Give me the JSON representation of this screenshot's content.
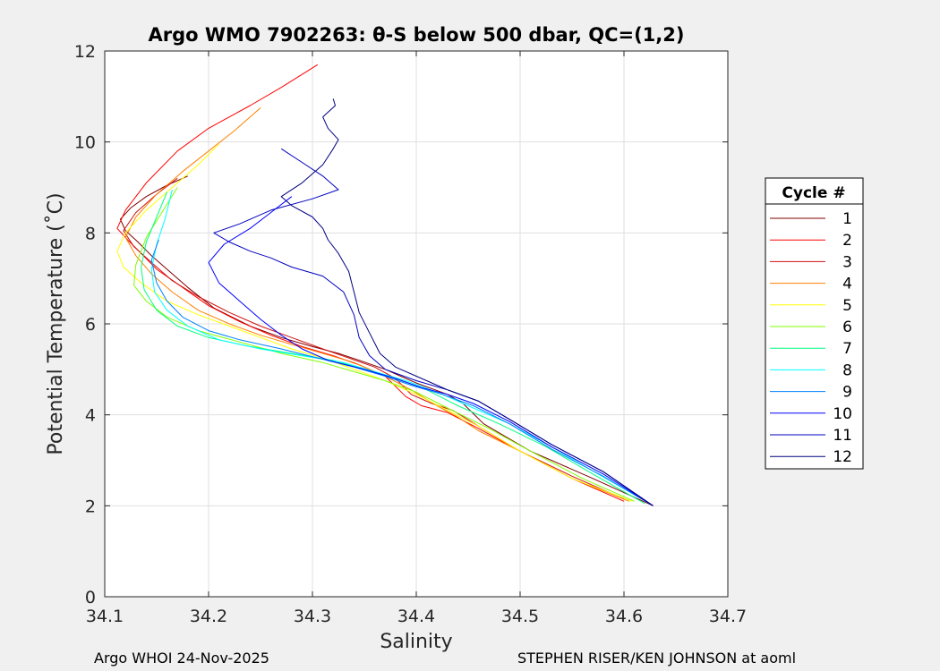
{
  "chart_data": {
    "type": "line",
    "title": "Argo WMO 7902263: θ-S below 500 dbar,  QC=(1,2)",
    "xlabel": "Salinity",
    "ylabel": "Potential Temperature (˚C)",
    "xlim": [
      34.1,
      34.7
    ],
    "ylim": [
      0,
      12
    ],
    "xticks": [
      34.1,
      34.2,
      34.3,
      34.4,
      34.5,
      34.6,
      34.7
    ],
    "xtick_labels": [
      "34.1",
      "34.2",
      "34.3",
      "34.4",
      "34.5",
      "34.6",
      "34.7"
    ],
    "yticks": [
      0,
      2,
      4,
      6,
      8,
      10,
      12
    ],
    "ytick_labels": [
      "0",
      "2",
      "4",
      "6",
      "8",
      "10",
      "12"
    ],
    "grid": true,
    "legend_title": "Cycle #",
    "legend_position": "right",
    "series": [
      {
        "name": "1",
        "color": "#800000",
        "x": [
          34.628,
          34.57,
          34.51,
          34.465,
          34.445,
          34.43,
          34.4,
          34.385,
          34.37,
          34.345,
          34.325,
          34.3,
          34.27,
          34.24,
          34.205,
          34.18,
          34.16,
          34.145,
          34.132,
          34.12,
          34.115,
          34.125,
          34.14,
          34.16,
          34.18
        ],
        "y": [
          2.0,
          2.6,
          3.2,
          3.8,
          4.25,
          4.45,
          4.7,
          4.85,
          5.0,
          5.2,
          5.35,
          5.5,
          5.7,
          5.95,
          6.35,
          6.8,
          7.2,
          7.5,
          7.8,
          8.05,
          8.3,
          8.55,
          8.8,
          9.05,
          9.25
        ]
      },
      {
        "name": "2",
        "color": "#ff0000",
        "x": [
          34.6,
          34.55,
          34.5,
          34.46,
          34.43,
          34.405,
          34.39,
          34.37,
          34.345,
          34.32,
          34.29,
          34.26,
          34.23,
          34.2,
          34.175,
          34.15,
          34.135,
          34.122,
          34.112,
          34.12,
          34.14,
          34.17,
          34.2,
          34.24,
          34.27,
          34.305
        ],
        "y": [
          2.1,
          2.6,
          3.2,
          3.7,
          4.05,
          4.2,
          4.4,
          4.85,
          5.1,
          5.3,
          5.5,
          5.75,
          6.05,
          6.4,
          6.8,
          7.2,
          7.55,
          7.85,
          8.1,
          8.5,
          9.1,
          9.8,
          10.3,
          10.8,
          11.2,
          11.7
        ]
      },
      {
        "name": "3",
        "color": "#d01010",
        "x": [
          34.6,
          34.55,
          34.5,
          34.46,
          34.435,
          34.415,
          34.395,
          34.38,
          34.36,
          34.335,
          34.31,
          34.28,
          34.25,
          34.22,
          34.19,
          34.165,
          34.145,
          34.128,
          34.118,
          34.13,
          34.15,
          34.17
        ],
        "y": [
          2.15,
          2.65,
          3.2,
          3.75,
          4.1,
          4.25,
          4.45,
          4.8,
          5.05,
          5.25,
          5.45,
          5.7,
          5.95,
          6.25,
          6.6,
          6.95,
          7.35,
          7.7,
          8.05,
          8.45,
          8.85,
          9.2
        ]
      },
      {
        "name": "4",
        "color": "#ff8000",
        "x": [
          34.605,
          34.55,
          34.5,
          34.46,
          34.44,
          34.42,
          34.395,
          34.37,
          34.34,
          34.31,
          34.28,
          34.25,
          34.22,
          34.19,
          34.165,
          34.145,
          34.13,
          34.12,
          34.13,
          34.15,
          34.175,
          34.2,
          34.225,
          34.25
        ],
        "y": [
          2.1,
          2.6,
          3.2,
          3.65,
          3.95,
          4.2,
          4.55,
          4.85,
          5.15,
          5.35,
          5.55,
          5.75,
          6.0,
          6.3,
          6.7,
          7.1,
          7.5,
          7.9,
          8.35,
          8.85,
          9.35,
          9.8,
          10.25,
          10.75
        ]
      },
      {
        "name": "5",
        "color": "#ffff00",
        "x": [
          34.608,
          34.55,
          34.5,
          34.46,
          34.43,
          34.4,
          34.37,
          34.34,
          34.31,
          34.28,
          34.25,
          34.22,
          34.19,
          34.16,
          34.135,
          34.118,
          34.112,
          34.12,
          34.14,
          34.165,
          34.19,
          34.21
        ],
        "y": [
          2.1,
          2.6,
          3.2,
          3.75,
          4.1,
          4.45,
          4.75,
          5.0,
          5.25,
          5.45,
          5.7,
          5.95,
          6.2,
          6.5,
          6.9,
          7.25,
          7.6,
          8.0,
          8.5,
          9.0,
          9.5,
          9.95
        ]
      },
      {
        "name": "6",
        "color": "#80ff00",
        "x": [
          34.61,
          34.56,
          34.51,
          34.47,
          34.43,
          34.4,
          34.37,
          34.34,
          34.31,
          34.27,
          34.23,
          34.19,
          34.16,
          34.14,
          34.128,
          34.13,
          34.14,
          34.155,
          34.17
        ],
        "y": [
          2.1,
          2.6,
          3.2,
          3.7,
          4.15,
          4.5,
          4.75,
          4.95,
          5.15,
          5.35,
          5.6,
          5.85,
          6.15,
          6.5,
          6.85,
          7.3,
          7.9,
          8.45,
          9.0
        ]
      },
      {
        "name": "7",
        "color": "#00ff80",
        "x": [
          34.62,
          34.57,
          34.525,
          34.48,
          34.44,
          34.41,
          34.38,
          34.35,
          34.32,
          34.28,
          34.24,
          34.2,
          34.17,
          34.15,
          34.138,
          34.135,
          34.14,
          34.15,
          34.16
        ],
        "y": [
          2.05,
          2.7,
          3.3,
          3.8,
          4.2,
          4.55,
          4.8,
          5.0,
          5.2,
          5.35,
          5.5,
          5.7,
          5.95,
          6.3,
          6.75,
          7.25,
          7.8,
          8.35,
          8.9
        ]
      },
      {
        "name": "8",
        "color": "#00ffff",
        "x": [
          34.625,
          34.575,
          34.53,
          34.49,
          34.45,
          34.42,
          34.39,
          34.36,
          34.33,
          34.29,
          34.25,
          34.21,
          34.18,
          34.16,
          34.148,
          34.145,
          34.15,
          34.158,
          34.165
        ],
        "y": [
          2.05,
          2.7,
          3.3,
          3.8,
          4.2,
          4.5,
          4.75,
          4.95,
          5.15,
          5.3,
          5.45,
          5.65,
          5.95,
          6.3,
          6.7,
          7.2,
          7.75,
          8.3,
          8.95
        ]
      },
      {
        "name": "9",
        "color": "#0080ff",
        "x": [
          34.628,
          34.58,
          34.53,
          34.49,
          34.455,
          34.425,
          34.395,
          34.37,
          34.34,
          34.305,
          34.27,
          34.23,
          34.2,
          34.175,
          34.16,
          34.15,
          34.145,
          34.152
        ],
        "y": [
          2.0,
          2.65,
          3.25,
          3.8,
          4.2,
          4.45,
          4.65,
          4.85,
          5.05,
          5.25,
          5.45,
          5.65,
          5.85,
          6.15,
          6.5,
          6.9,
          7.4,
          7.85
        ]
      },
      {
        "name": "10",
        "color": "#0000ff",
        "x": [
          34.628,
          34.58,
          34.53,
          34.49,
          34.455,
          34.43,
          34.405,
          34.38,
          34.35,
          34.315,
          34.29,
          34.27,
          34.25,
          34.23,
          34.21,
          34.2,
          34.215,
          34.24,
          34.26,
          34.28
        ],
        "y": [
          2.0,
          2.7,
          3.3,
          3.85,
          4.25,
          4.45,
          4.6,
          4.8,
          5.0,
          5.2,
          5.45,
          5.75,
          6.1,
          6.5,
          6.9,
          7.35,
          7.75,
          8.1,
          8.45,
          8.8
        ]
      },
      {
        "name": "11",
        "color": "#0000c0",
        "x": [
          34.628,
          34.58,
          34.53,
          34.49,
          34.46,
          34.43,
          34.4,
          34.37,
          34.355,
          34.345,
          34.34,
          34.33,
          34.31,
          34.28,
          34.26,
          34.24,
          34.22,
          34.205,
          34.23,
          34.26,
          34.3,
          34.325,
          34.31,
          34.29,
          34.27
        ],
        "y": [
          2.0,
          2.75,
          3.35,
          3.9,
          4.3,
          4.55,
          4.75,
          5.0,
          5.3,
          5.7,
          6.2,
          6.7,
          7.05,
          7.25,
          7.45,
          7.6,
          7.8,
          8.0,
          8.2,
          8.5,
          8.75,
          8.95,
          9.25,
          9.55,
          9.85
        ]
      },
      {
        "name": "12",
        "color": "#000080",
        "x": [
          34.628,
          34.58,
          34.53,
          34.49,
          34.46,
          34.43,
          34.405,
          34.38,
          34.365,
          34.355,
          34.345,
          34.34,
          34.335,
          34.325,
          34.315,
          34.31,
          34.3,
          34.28,
          34.27,
          34.29,
          34.31,
          34.32,
          34.325,
          34.315,
          34.31,
          34.322,
          34.32
        ],
        "y": [
          2.0,
          2.75,
          3.35,
          3.9,
          4.3,
          4.55,
          4.8,
          5.05,
          5.35,
          5.8,
          6.25,
          6.7,
          7.15,
          7.55,
          7.85,
          8.1,
          8.35,
          8.6,
          8.8,
          9.1,
          9.5,
          9.85,
          10.05,
          10.3,
          10.55,
          10.8,
          10.95
        ]
      }
    ]
  },
  "footer": {
    "left": "Argo WHOI 24-Nov-2025",
    "right": "STEPHEN RISER/KEN JOHNSON at aoml"
  }
}
